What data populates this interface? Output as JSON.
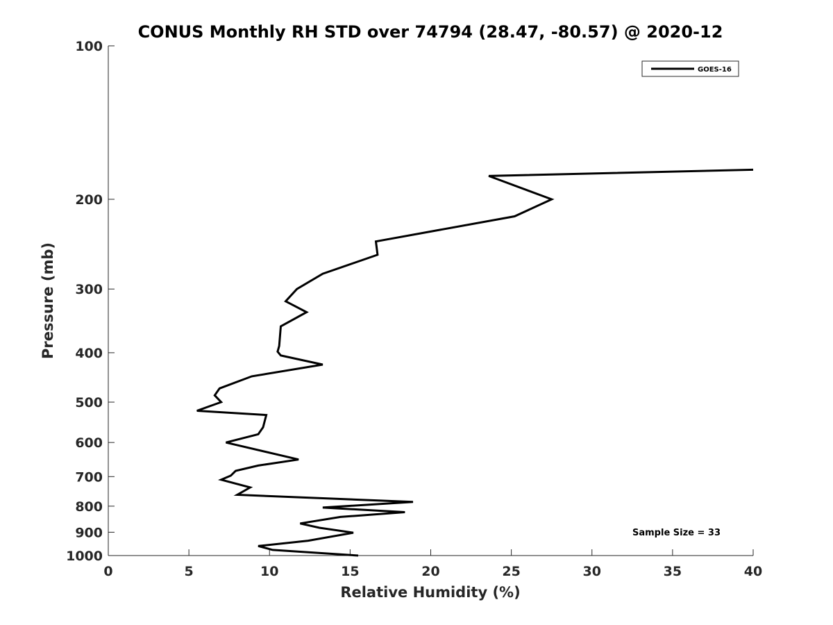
{
  "chart_data": {
    "type": "line",
    "title": "CONUS Monthly RH STD over 74794 (28.47, -80.57) @ 2020-12",
    "xlabel": "Relative Humidity (%)",
    "ylabel": "Pressure (mb)",
    "xlim": [
      0,
      40
    ],
    "ylim": [
      100,
      1000
    ],
    "y_scale": "log",
    "y_reversed": true,
    "x_ticks": [
      0,
      5,
      10,
      15,
      20,
      25,
      30,
      35,
      40
    ],
    "y_ticks": [
      100,
      200,
      300,
      400,
      500,
      600,
      700,
      800,
      900,
      1000
    ],
    "grid": false,
    "legend_position": "top-right",
    "annotation": "Sample Size = 33",
    "colors": {
      "line": "#000000",
      "axis": "#262626"
    },
    "series": [
      {
        "name": "GOES-16",
        "x": [
          40.0,
          23.6,
          27.5,
          25.2,
          16.6,
          16.7,
          13.3,
          11.7,
          11.0,
          12.3,
          10.7,
          10.6,
          10.5,
          10.7,
          13.3,
          8.9,
          6.9,
          6.6,
          7.0,
          5.5,
          9.8,
          9.6,
          9.3,
          7.3,
          11.8,
          9.3,
          7.9,
          7.6,
          7.0,
          8.8,
          8.0,
          18.9,
          13.3,
          18.4,
          14.4,
          11.9,
          13.1,
          15.2,
          12.4,
          9.3,
          10.2,
          15.5
        ],
        "y": [
          175,
          180,
          200,
          216,
          242,
          257,
          280,
          300,
          317,
          333,
          355,
          388,
          398,
          405,
          422,
          445,
          470,
          485,
          500,
          520,
          530,
          560,
          578,
          600,
          648,
          666,
          682,
          697,
          710,
          735,
          760,
          785,
          805,
          822,
          840,
          865,
          882,
          902,
          935,
          958,
          975,
          1000
        ]
      }
    ]
  }
}
